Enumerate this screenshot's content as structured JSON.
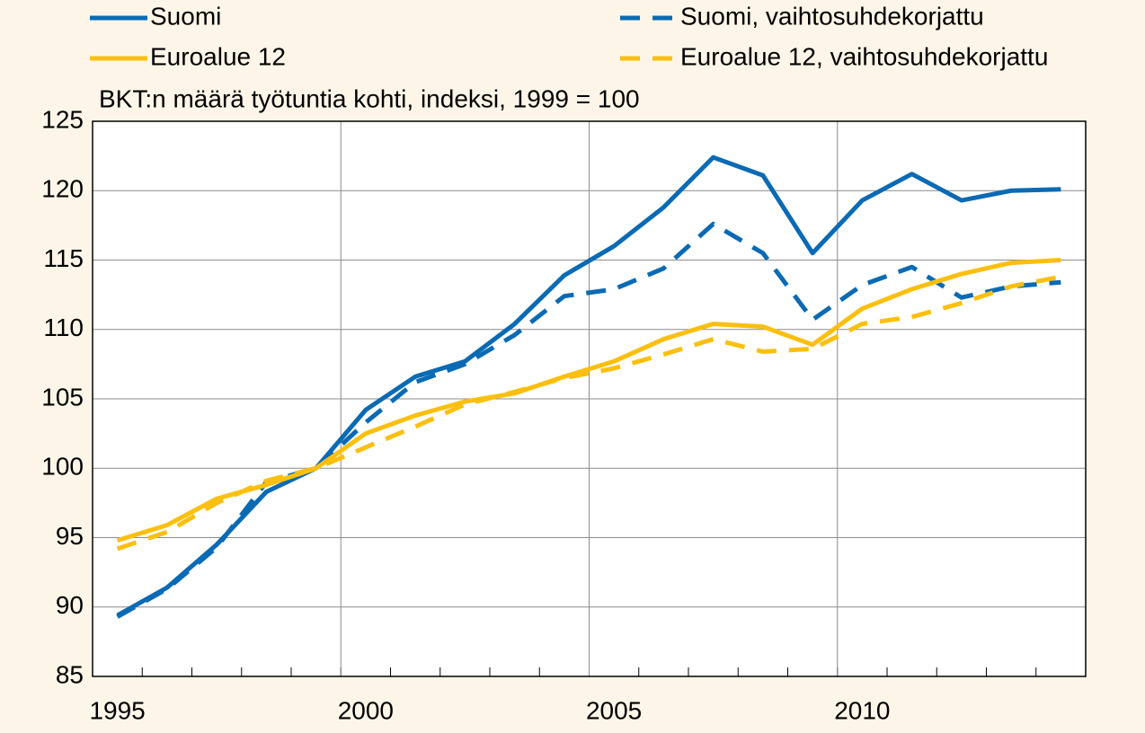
{
  "chart_data": {
    "type": "line",
    "subtitle": "BKT:n määrä työtuntia kohti, indeksi, 1999 = 100",
    "categories": [
      "1995",
      null,
      null,
      null,
      null,
      "2000",
      null,
      null,
      null,
      null,
      "2005",
      null,
      null,
      null,
      null,
      "2010",
      null,
      null,
      null,
      null
    ],
    "series": [
      {
        "name": "Suomi",
        "color": "#0a6ab4",
        "dashed": false,
        "values": [
          89.4,
          91.4,
          94.5,
          98.3,
          100,
          104.2,
          106.6,
          107.7,
          110.4,
          113.9,
          116.0,
          118.8,
          122.4,
          121.1,
          115.5,
          119.3,
          121.2,
          119.3,
          120.0,
          120.1
        ]
      },
      {
        "name": "Suomi, vaihtosuhdekorjattu",
        "color": "#0a6ab4",
        "dashed": true,
        "values": [
          89.3,
          91.3,
          94.3,
          99.0,
          100,
          103.3,
          106.2,
          107.5,
          109.6,
          112.4,
          112.9,
          114.4,
          117.6,
          115.5,
          110.7,
          113.2,
          114.5,
          112.3,
          113.1,
          113.4
        ]
      },
      {
        "name": "Euroalue 12",
        "color": "#fbbf0e",
        "dashed": false,
        "values": [
          94.8,
          95.9,
          97.8,
          98.8,
          100,
          102.5,
          103.8,
          104.8,
          105.4,
          106.6,
          107.7,
          109.3,
          110.4,
          110.2,
          108.9,
          111.5,
          112.9,
          114.0,
          114.8,
          115.0
        ]
      },
      {
        "name": "Euroalue 12, vaihtosuhdekorjattu",
        "color": "#fbbf0e",
        "dashed": true,
        "values": [
          94.2,
          95.4,
          97.5,
          99.1,
          100,
          101.5,
          103.0,
          104.6,
          105.5,
          106.5,
          107.2,
          108.2,
          109.3,
          108.4,
          108.6,
          110.4,
          110.9,
          111.9,
          113.1,
          113.8
        ]
      }
    ],
    "ylim": [
      85,
      125
    ],
    "yticks": [
      85,
      90,
      95,
      100,
      105,
      110,
      115,
      120,
      125
    ],
    "grid": true
  }
}
